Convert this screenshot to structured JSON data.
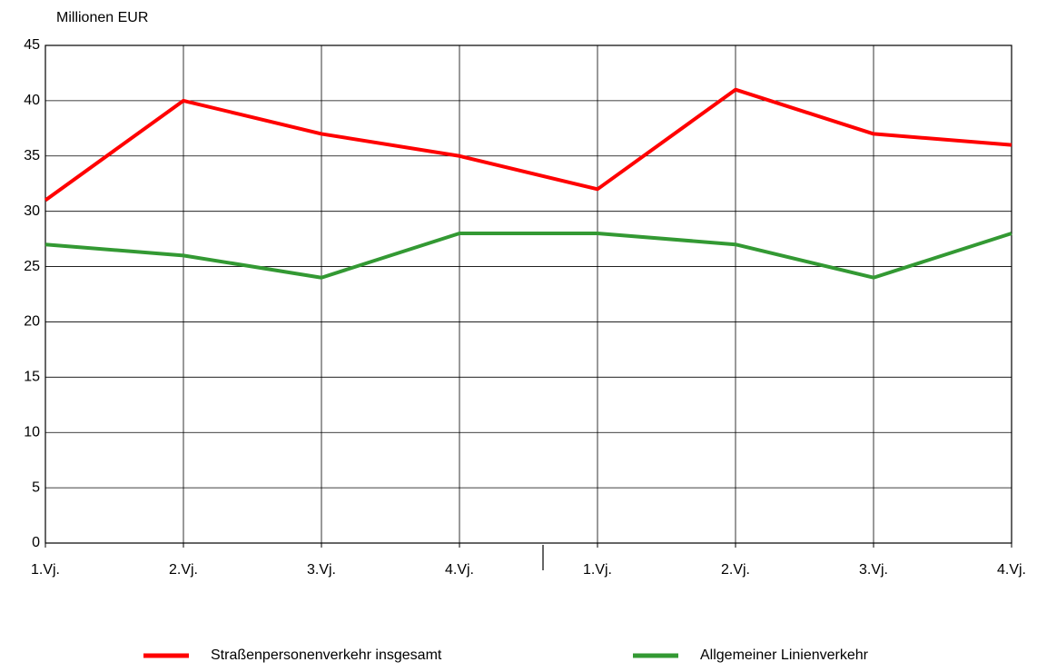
{
  "chart_data": {
    "type": "line",
    "y_label": "Millionen EUR",
    "categories": [
      "1.Vj.",
      "2.Vj.",
      "3.Vj.",
      "4.Vj.",
      "1.Vj.",
      "2.Vj.",
      "3.Vj.",
      "4.Vj."
    ],
    "series": [
      {
        "name": "Straßenpersonenverkehr insgesamt",
        "color": "#ff0000",
        "values": [
          31,
          40,
          37,
          35,
          32,
          41,
          37,
          36
        ]
      },
      {
        "name": "Allgemeiner Linienverkehr",
        "color": "#339933",
        "values": [
          27,
          26,
          24,
          28,
          28,
          27,
          24,
          28
        ]
      }
    ],
    "ylim": [
      0,
      45
    ],
    "yticks": [
      0,
      5,
      10,
      15,
      20,
      25,
      30,
      35,
      40,
      45
    ],
    "grid": true,
    "legend": "bottom"
  }
}
